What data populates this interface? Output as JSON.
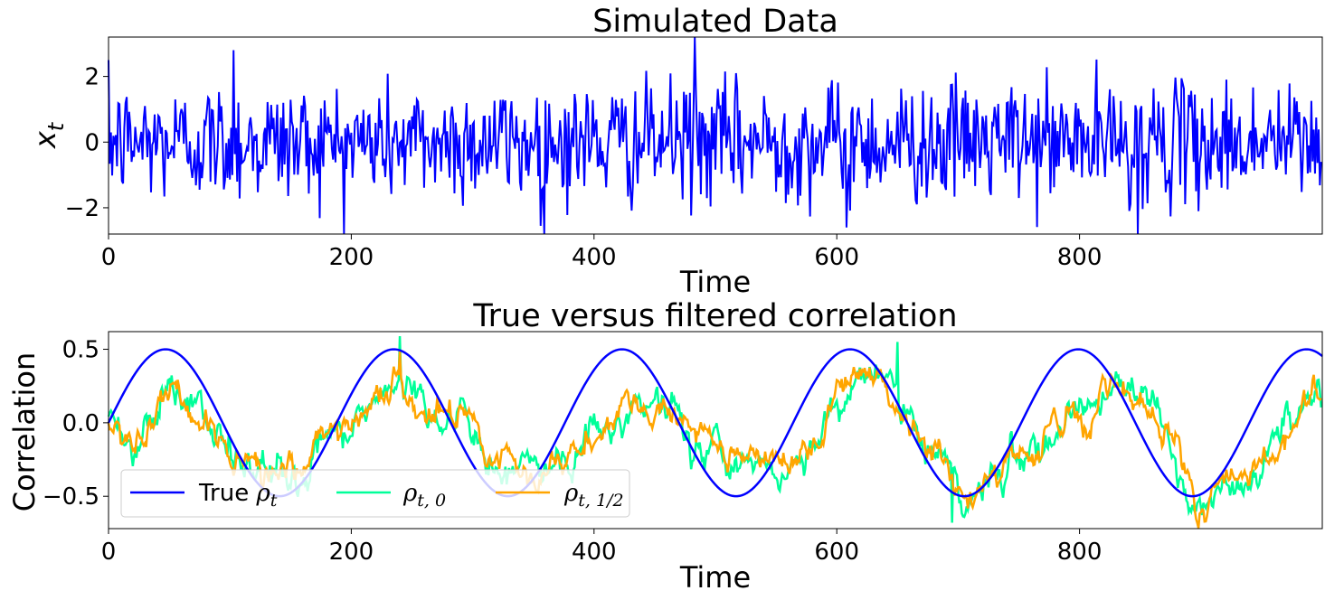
{
  "charts": [
    {
      "type": "line",
      "title": "Simulated Data",
      "xlabel": "Time",
      "ylabel_main": "x",
      "ylabel_sub": "t",
      "xlim": [
        0,
        1000
      ],
      "ylim": [
        -2.8,
        3.2
      ],
      "xticks": [
        0,
        200,
        400,
        600,
        800
      ],
      "xtick_labels": [
        "0",
        "200",
        "400",
        "600",
        "800"
      ],
      "yticks": [
        -2,
        0,
        2
      ],
      "ytick_labels": [
        "−2",
        "0",
        "2"
      ],
      "series": [
        {
          "name": "x_t",
          "color": "#0000ff",
          "description": "white noise series, 1000 points, mostly within -2..2, peaks near 2.8 (t≈103), 3.2 (t≈483), min near -2.8 (t≈848)"
        }
      ]
    },
    {
      "type": "line",
      "title": "True versus filtered correlation",
      "xlabel": "Time",
      "ylabel": "Correlation",
      "xlim": [
        0,
        1000
      ],
      "ylim": [
        -0.72,
        0.62
      ],
      "xticks": [
        0,
        200,
        400,
        600,
        800
      ],
      "xtick_labels": [
        "0",
        "200",
        "400",
        "600",
        "800"
      ],
      "yticks": [
        -0.5,
        0.0,
        0.5
      ],
      "ytick_labels": [
        "−0.5",
        "0.0",
        "0.5"
      ],
      "true_rho": {
        "amplitude": 0.5,
        "period": 188,
        "phase": 0
      },
      "series": [
        {
          "name": "True ρt",
          "color": "#0000ff"
        },
        {
          "name": "ρt,0",
          "color": "#00ff99"
        },
        {
          "name": "ρt,1/2",
          "color": "#ffa500"
        }
      ],
      "filtered_anchors_t": [
        0,
        20,
        45,
        70,
        100,
        130,
        160,
        185,
        210,
        238,
        265,
        290,
        320,
        345,
        365,
        395,
        425,
        455,
        490,
        520,
        550,
        585,
        612,
        635,
        660,
        690,
        705,
        740,
        770,
        800,
        830,
        860,
        895,
        930,
        960,
        990,
        1000
      ],
      "filtered_anchors_v": [
        0.0,
        -0.15,
        0.2,
        0.1,
        -0.2,
        -0.3,
        -0.35,
        -0.15,
        0.05,
        0.3,
        0.1,
        0.0,
        -0.35,
        -0.3,
        -0.35,
        -0.1,
        0.1,
        0.15,
        -0.15,
        -0.25,
        -0.35,
        -0.1,
        0.35,
        0.35,
        0.1,
        -0.3,
        -0.55,
        -0.3,
        -0.1,
        0.15,
        0.2,
        0.15,
        -0.6,
        -0.45,
        -0.15,
        0.15,
        0.15
      ]
    }
  ],
  "legend": {
    "items": [
      {
        "text": "True ",
        "math": "ρ",
        "sub": "t",
        "color": "#0000ff"
      },
      {
        "text": "",
        "math": "ρ",
        "sub": "t, 0",
        "color": "#00ff99"
      },
      {
        "text": "",
        "math": "ρ",
        "sub": "t, 1/2",
        "color": "#ffa500"
      }
    ]
  }
}
